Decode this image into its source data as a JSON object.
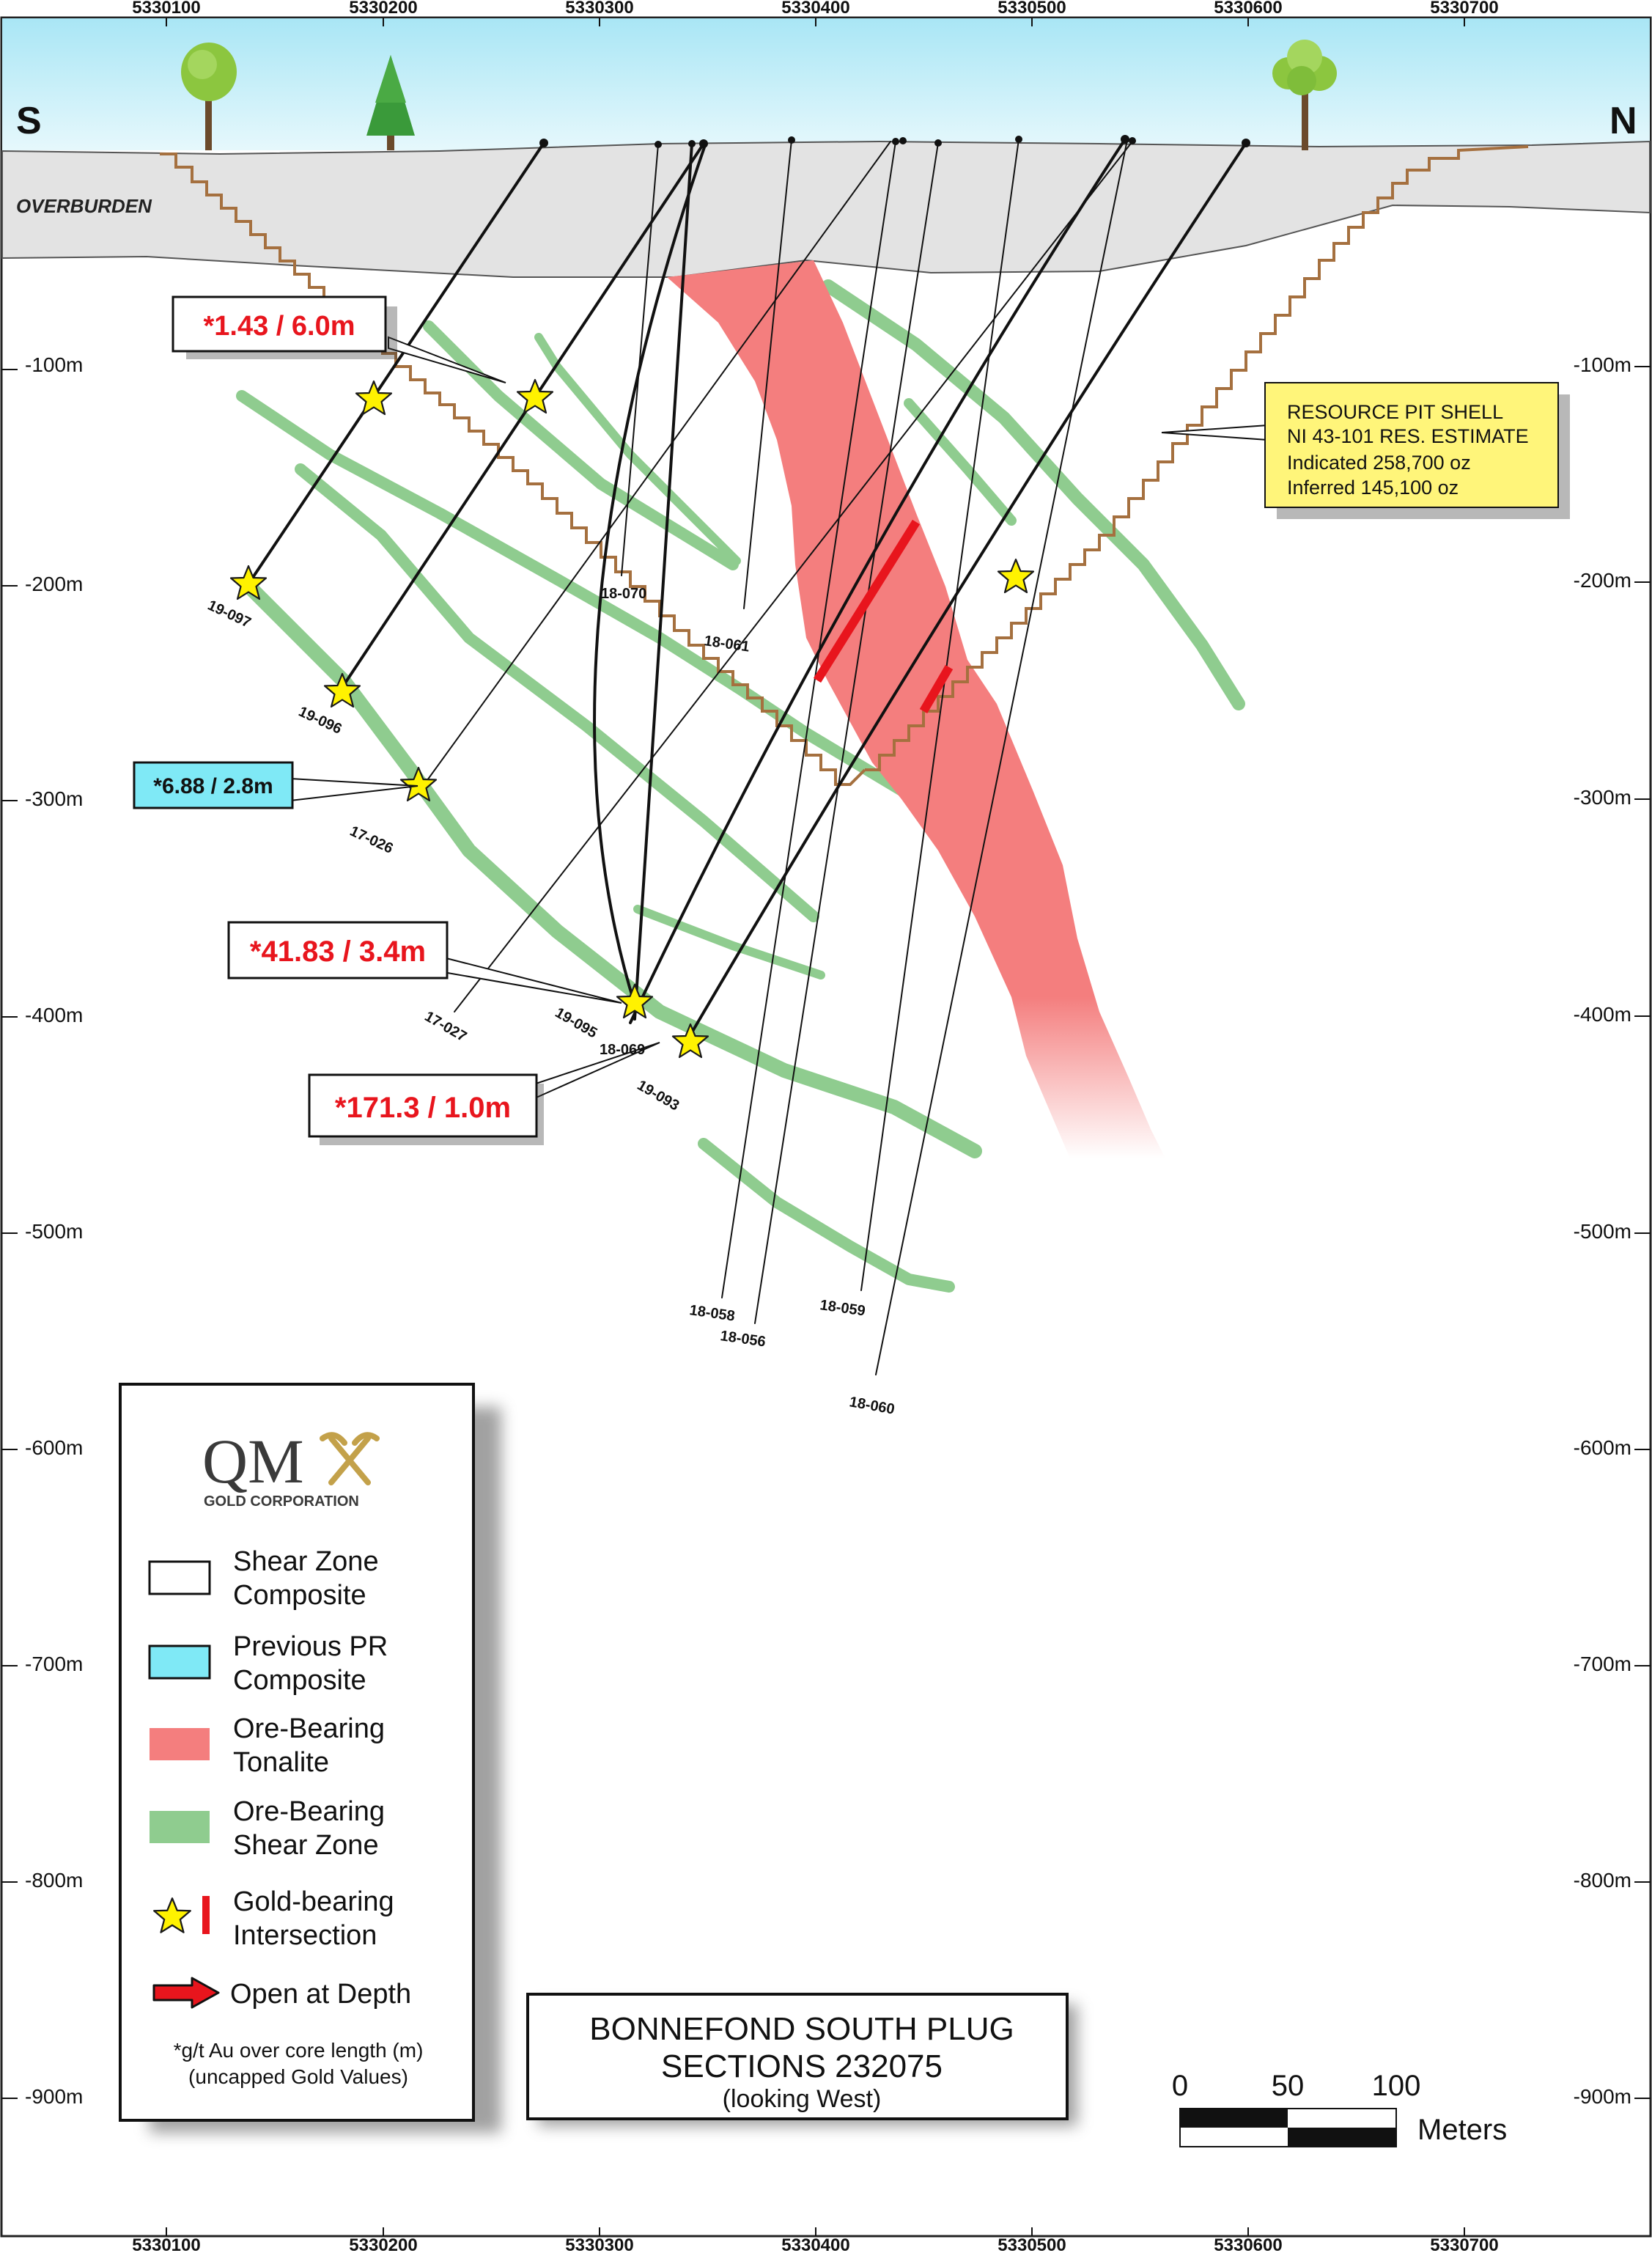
{
  "axis": {
    "eastings": [
      "5330100",
      "5330200",
      "5330300",
      "5330400",
      "5330500",
      "5330600",
      "5330700"
    ],
    "depths": [
      "-100m",
      "-200m",
      "-300m",
      "-400m",
      "-500m",
      "-600m",
      "-700m",
      "-800m",
      "-900m"
    ]
  },
  "directions": {
    "south": "S",
    "north": "N"
  },
  "overburden_label": "OVERBURDEN",
  "callouts": {
    "c1": "*1.43 / 6.0m",
    "c2": "*6.88 / 2.8m",
    "c3": "*41.83 / 3.4m",
    "c4": "*171.3 / 1.0m"
  },
  "resource_box": {
    "line1": "RESOURCE PIT SHELL",
    "line2": "NI 43-101 RES. ESTIMATE",
    "line3": "Indicated 258,700 oz",
    "line4": "Inferred 145,100 oz"
  },
  "holes": {
    "h19_097": "19-097",
    "h19_096": "19-096",
    "h17_026": "17-026",
    "h17_027": "17-027",
    "h19_095": "19-095",
    "h18_069": "18-069",
    "h19_093": "19-093",
    "h18_070": "18-070",
    "h18_061": "18-061",
    "h18_058": "18-058",
    "h18_056": "18-056",
    "h18_059": "18-059",
    "h18_060": "18-060"
  },
  "legend": {
    "logo_main": "QM",
    "logo_sub": "GOLD CORPORATION",
    "items": [
      {
        "line1": "Shear Zone",
        "line2": "Composite"
      },
      {
        "line1": "Previous PR",
        "line2": "Composite"
      },
      {
        "line1": "Ore-Bearing",
        "line2": "Tonalite"
      },
      {
        "line1": "Ore-Bearing",
        "line2": "Shear Zone"
      },
      {
        "line1": "Gold-bearing",
        "line2": "Intersection"
      },
      {
        "line1": "Open at Depth",
        "line2": ""
      }
    ],
    "note1": "*g/t Au over core length (m)",
    "note2": "(uncapped Gold Values)"
  },
  "title_box": {
    "line1": "BONNEFOND SOUTH PLUG",
    "line2": "SECTIONS 232075",
    "line3": "(looking West)"
  },
  "scale_bar": {
    "t0": "0",
    "t50": "50",
    "t100": "100",
    "unit": "Meters"
  },
  "colors": {
    "sky": "#c9f0fa",
    "overburden": "#e3e3e3",
    "tonalite": "#f47e7e",
    "shear_zone": "#8fcc8f",
    "pit_shell": "#a5703f",
    "callout_red": "#e8151d",
    "callout_cyan": "#7fe9f6",
    "resource_box": "#fff57a",
    "star": "#fff200"
  }
}
